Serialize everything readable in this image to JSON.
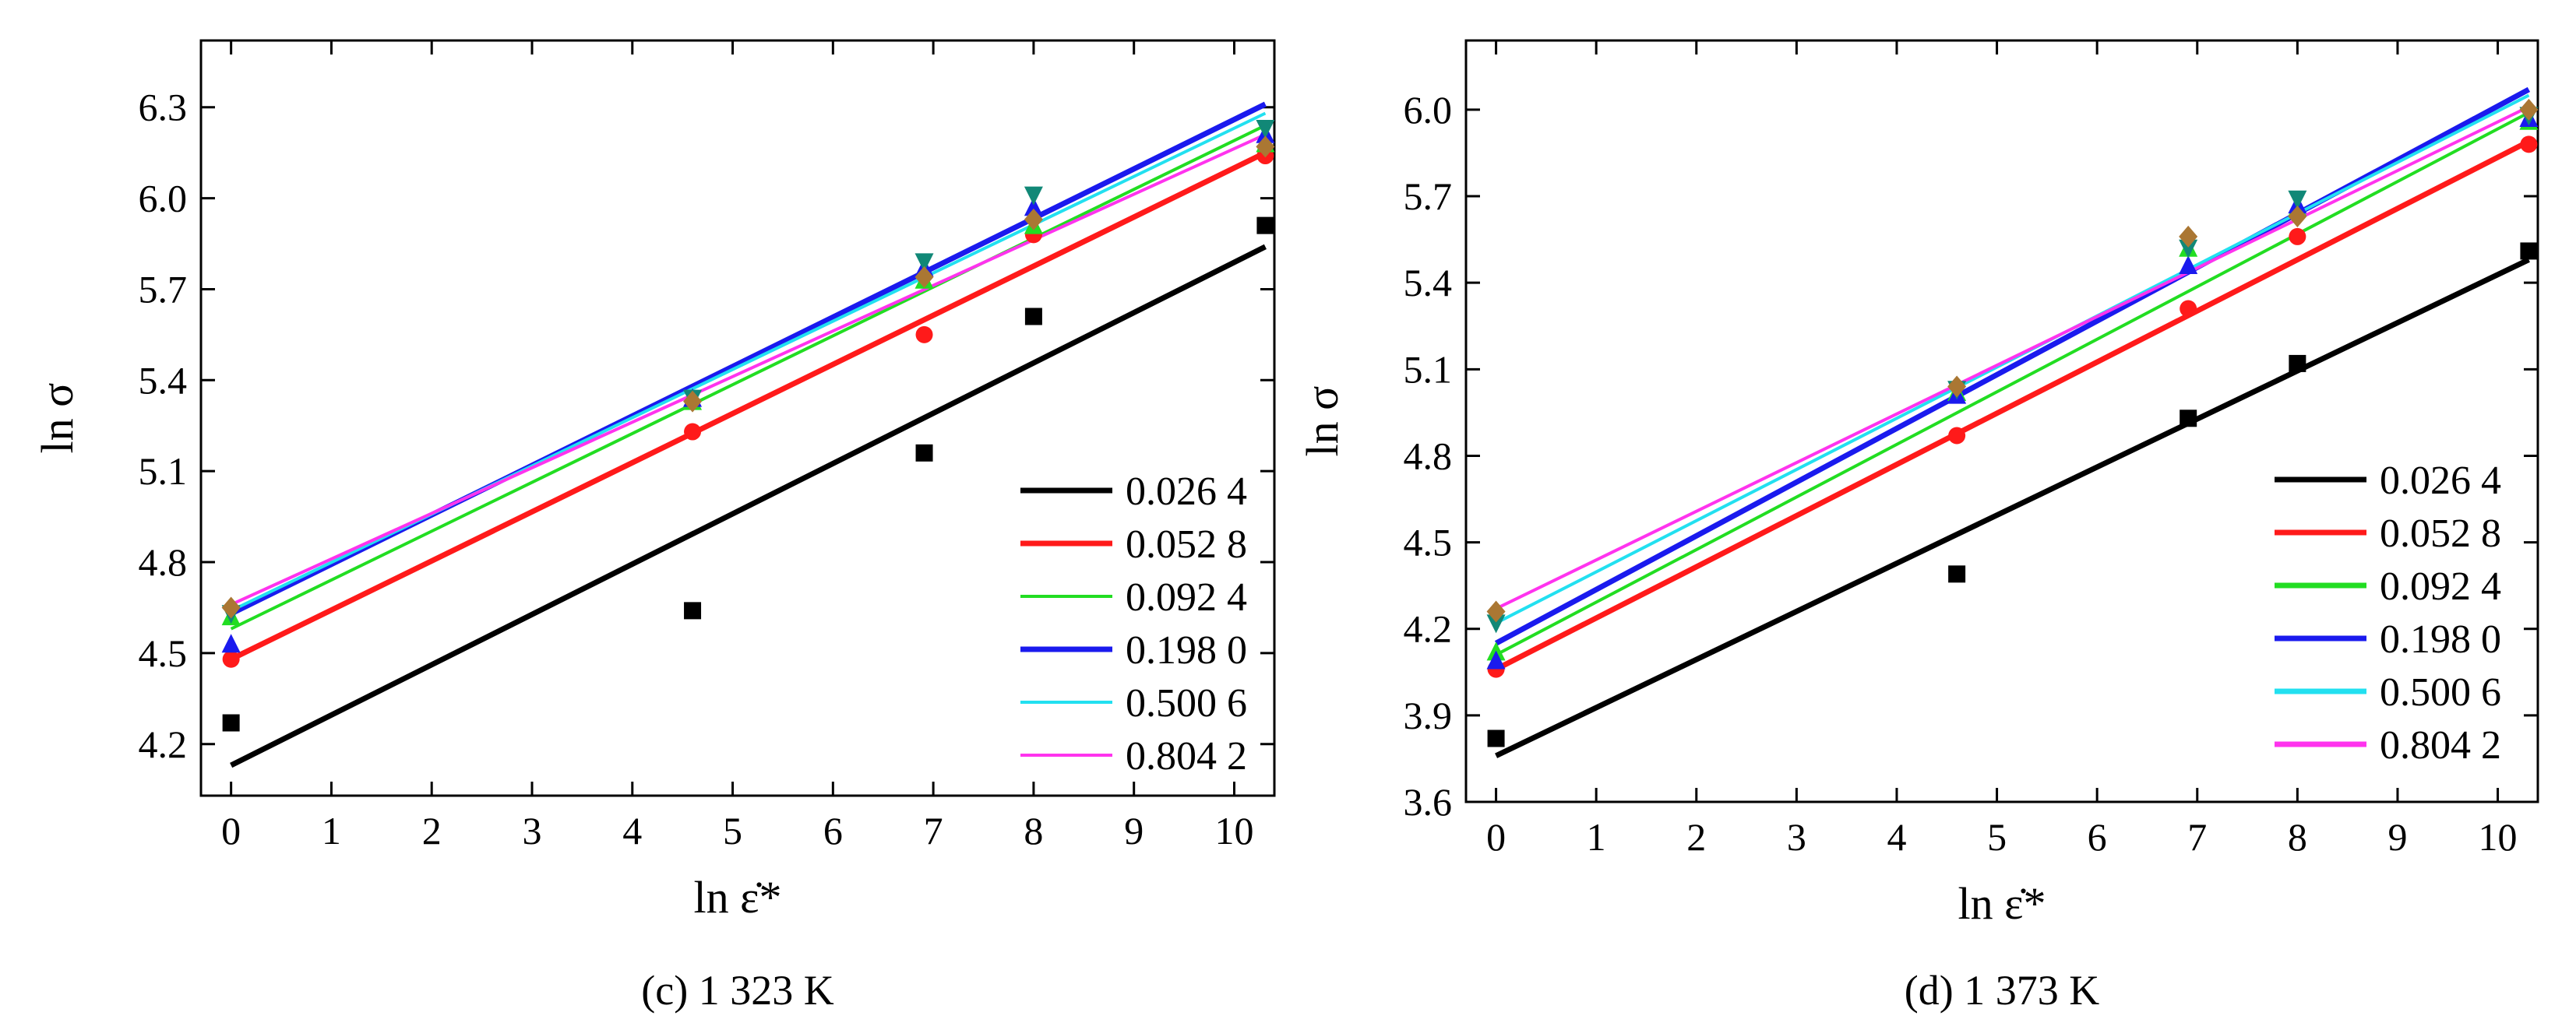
{
  "chart_data": [
    {
      "type": "line",
      "caption": "(c) 1 323 K",
      "xlabel": "ln ε̇*",
      "ylabel": "ln σ",
      "xlim": [
        -0.3,
        10.4
      ],
      "ylim": [
        4.03,
        6.52
      ],
      "xticks": [
        0,
        1,
        2,
        3,
        4,
        5,
        6,
        7,
        8,
        9,
        10
      ],
      "xtick_labels": [
        "0",
        "1",
        "2",
        "3",
        "4",
        "5",
        "6",
        "7",
        "8",
        "9",
        "10"
      ],
      "yticks": [
        4.2,
        4.5,
        4.8,
        5.1,
        5.4,
        5.7,
        6.0,
        6.3
      ],
      "ytick_labels": [
        "4.2",
        "4.5",
        "4.8",
        "5.1",
        "5.4",
        "5.7",
        "6.0",
        "6.3"
      ],
      "legend_position": "bottom-right",
      "x": [
        0,
        4.6,
        6.91,
        8.0,
        10.31
      ],
      "fit_x": [
        0,
        10.31
      ],
      "series": [
        {
          "name": "0.026 4",
          "color": "#000000",
          "marker": "square",
          "points_y": [
            4.27,
            4.64,
            5.16,
            5.61,
            5.91
          ],
          "fit_y": [
            4.13,
            5.84
          ]
        },
        {
          "name": "0.052 8",
          "color": "#ff1a1a",
          "marker": "circle",
          "points_y": [
            4.48,
            5.23,
            5.55,
            5.88,
            6.14
          ],
          "fit_y": [
            4.48,
            6.15
          ]
        },
        {
          "name": "0.092 4",
          "color": "#22dd22",
          "marker": "triangle",
          "points_y": [
            4.62,
            5.33,
            5.73,
            5.91,
            6.18
          ],
          "fit_y": [
            4.58,
            6.24
          ]
        },
        {
          "name": "0.198 0",
          "color": "#1a1aee",
          "marker": "triangle",
          "points_y": [
            4.53,
            5.34,
            5.77,
            5.97,
            6.21
          ],
          "fit_y": [
            4.63,
            6.31
          ]
        },
        {
          "name": "0.500 6",
          "color": "#22e0f0",
          "marker": "triangle-down",
          "points_y": [
            4.63,
            5.34,
            5.79,
            6.01,
            6.23
          ],
          "fit_y": [
            4.64,
            6.28
          ]
        },
        {
          "name": "0.804 2",
          "color": "#ff33ee",
          "marker": "diamond",
          "points_y": [
            4.65,
            5.33,
            5.74,
            5.93,
            6.17
          ],
          "fit_y": [
            4.66,
            6.21
          ]
        }
      ]
    },
    {
      "type": "line",
      "caption": "(d) 1 373 K",
      "xlabel": "ln ε̇*",
      "ylabel": "ln σ",
      "xlim": [
        -0.3,
        10.4
      ],
      "ylim": [
        3.6,
        6.24
      ],
      "xticks": [
        0,
        1,
        2,
        3,
        4,
        5,
        6,
        7,
        8,
        9,
        10
      ],
      "xtick_labels": [
        "0",
        "1",
        "2",
        "3",
        "4",
        "5",
        "6",
        "7",
        "8",
        "9",
        "10"
      ],
      "yticks": [
        3.6,
        3.9,
        4.2,
        4.5,
        4.8,
        5.1,
        5.4,
        5.7,
        6.0
      ],
      "ytick_labels": [
        "3.6",
        "3.9",
        "4.2",
        "4.5",
        "4.8",
        "5.1",
        "5.4",
        "5.7",
        "6.0"
      ],
      "legend_position": "bottom-right",
      "x": [
        0,
        4.6,
        6.91,
        8.0,
        10.31
      ],
      "fit_x": [
        0,
        10.31
      ],
      "series": [
        {
          "name": "0.026 4",
          "color": "#000000",
          "marker": "square",
          "points_y": [
            3.82,
            4.39,
            4.93,
            5.12,
            5.51
          ],
          "fit_y": [
            3.76,
            5.48
          ]
        },
        {
          "name": "0.052 8",
          "color": "#ff1a1a",
          "marker": "circle",
          "points_y": [
            4.06,
            4.87,
            5.31,
            5.56,
            5.88
          ],
          "fit_y": [
            4.06,
            5.89
          ]
        },
        {
          "name": "0.092 4",
          "color": "#22dd22",
          "marker": "triangle",
          "points_y": [
            4.12,
            5.02,
            5.52,
            5.66,
            5.96
          ],
          "fit_y": [
            4.11,
            5.99
          ]
        },
        {
          "name": "0.198 0",
          "color": "#1a1aee",
          "marker": "triangle",
          "points_y": [
            4.09,
            5.01,
            5.46,
            5.67,
            5.97
          ],
          "fit_y": [
            4.15,
            6.07
          ]
        },
        {
          "name": "0.500 6",
          "color": "#22e0f0",
          "marker": "triangle-down",
          "points_y": [
            4.22,
            5.03,
            5.52,
            5.69,
            5.98
          ],
          "fit_y": [
            4.22,
            6.05
          ]
        },
        {
          "name": "0.804 2",
          "color": "#ff33ee",
          "marker": "diamond",
          "points_y": [
            4.26,
            5.04,
            5.56,
            5.63,
            6.0
          ],
          "fit_y": [
            4.27,
            6.01
          ]
        }
      ]
    }
  ]
}
